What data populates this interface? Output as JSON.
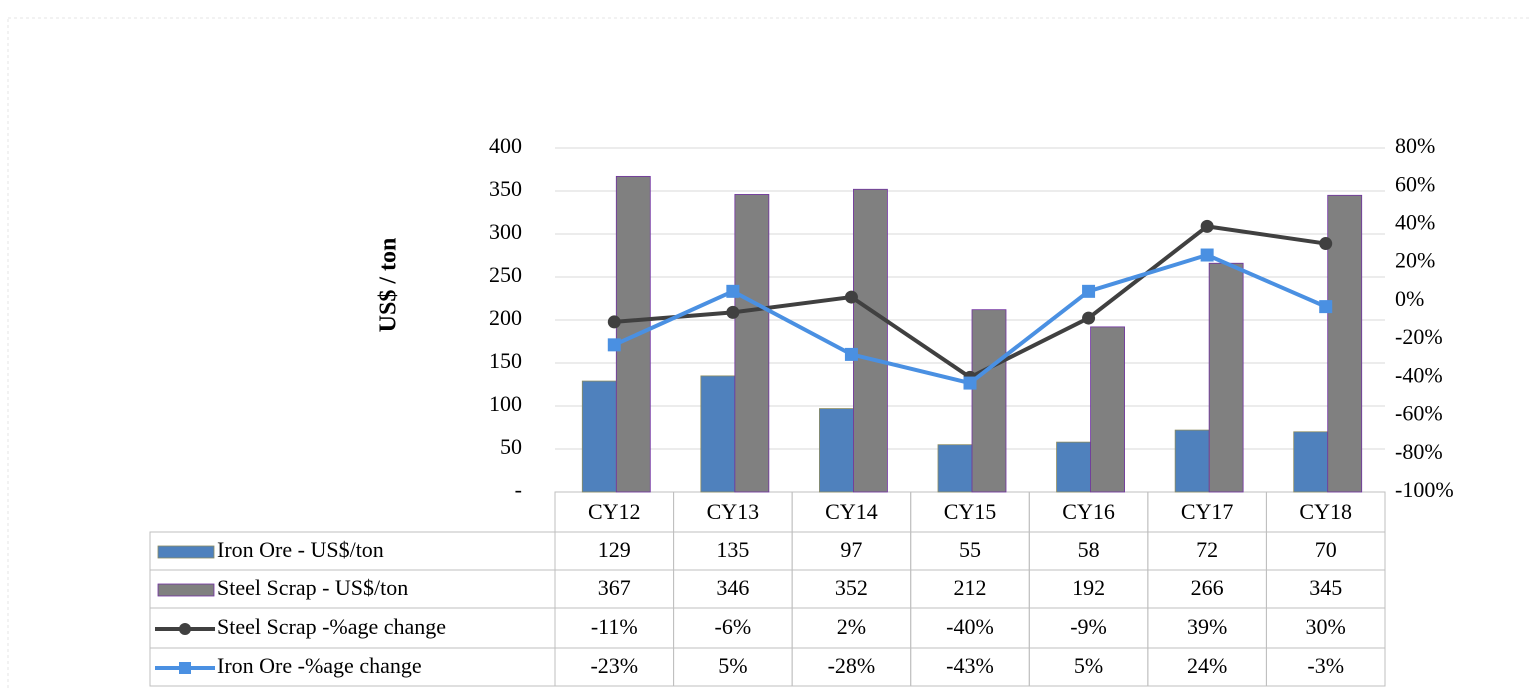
{
  "chart_data": {
    "type": "bar",
    "y_label": "US$ / ton",
    "categories": [
      "CY12",
      "CY13",
      "CY14",
      "CY15",
      "CY16",
      "CY17",
      "CY18"
    ],
    "series": [
      {
        "name": "Iron Ore - US$/ton",
        "type": "bar",
        "color": "#4f81bd",
        "values": [
          129,
          135,
          97,
          55,
          58,
          72,
          70
        ]
      },
      {
        "name": "Steel Scrap - US$/ton",
        "type": "bar",
        "color": "#808080",
        "values": [
          367,
          346,
          352,
          212,
          192,
          266,
          345
        ]
      },
      {
        "name": "Steel Scrap -%age change",
        "type": "line",
        "axis": "y2",
        "color": "#404040",
        "marker": "circle",
        "values": [
          -11,
          -6,
          2,
          -40,
          -9,
          39,
          30
        ],
        "value_labels": [
          "-11%",
          "-6%",
          "2%",
          "-40%",
          "-9%",
          "39%",
          "30%"
        ]
      },
      {
        "name": "Iron Ore -%age change",
        "type": "line",
        "axis": "y2",
        "color": "#4a90e2",
        "marker": "square",
        "values": [
          -23,
          5,
          -28,
          -43,
          5,
          24,
          -3
        ],
        "value_labels": [
          "-23%",
          "5%",
          "-28%",
          "-43%",
          "5%",
          "24%",
          "-3%"
        ]
      }
    ],
    "ylim": [
      0,
      400
    ],
    "yticks": [
      {
        "value": 0,
        "label": "-"
      },
      50,
      100,
      150,
      200,
      250,
      300,
      350,
      400
    ],
    "y2lim": [
      -100,
      80
    ],
    "y2ticks": [
      {
        "value": -100,
        "label": "-100%"
      },
      {
        "value": -80,
        "label": "-80%"
      },
      {
        "value": -60,
        "label": "-60%"
      },
      {
        "value": -40,
        "label": "-40%"
      },
      {
        "value": -20,
        "label": "-20%"
      },
      {
        "value": 0,
        "label": "0%"
      },
      {
        "value": 20,
        "label": "20%"
      },
      {
        "value": 40,
        "label": "40%"
      },
      {
        "value": 60,
        "label": "60%"
      },
      {
        "value": 80,
        "label": "80%"
      }
    ],
    "grid": true
  }
}
